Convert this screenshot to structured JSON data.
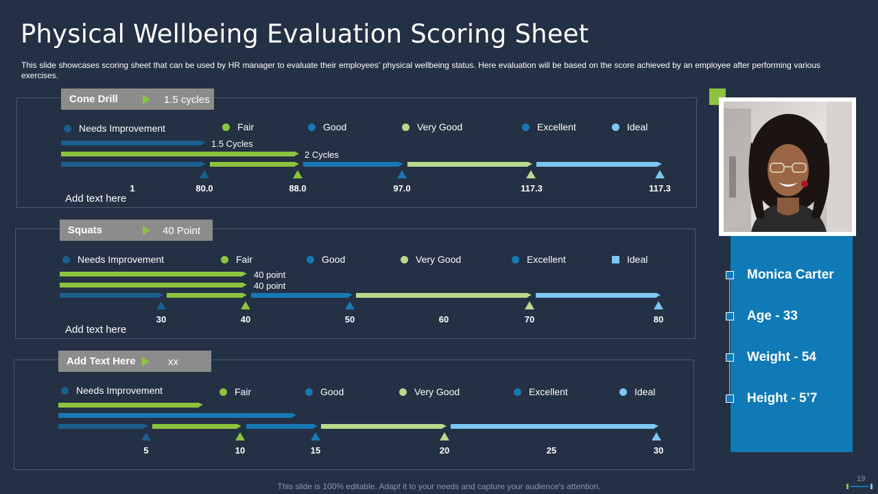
{
  "title": "Physical Wellbeing Evaluation Scoring Sheet",
  "subtitle": "This slide showcases scoring sheet that can be used by HR manager to evaluate their employees' physical wellbeing status. Here evaluation will be based on the score achieved by an employee after performing various exercises.",
  "legend": [
    "Needs Improvement",
    "Fair",
    "Good",
    "Very Good",
    "Excellent",
    "Ideal"
  ],
  "colors": {
    "dark_blue": "#1a5f8e",
    "green": "#8cc43f",
    "mid_blue": "#1779b3",
    "light_green": "#b9d98c",
    "light_blue": "#7cc8f2",
    "panel_bg": "#243044"
  },
  "sections": [
    {
      "name": "Cone Drill",
      "value": "1.5 cycles",
      "bar_labels": [
        "1.5 Cycles",
        "2 Cycles"
      ],
      "ticks": [
        "1",
        "80.0",
        "88.0",
        "97.0",
        "117.3",
        "117.3"
      ],
      "add_text": "Add text here"
    },
    {
      "name": "Squats",
      "value": "40 Point",
      "bar_labels": [
        "40 point",
        "40 point"
      ],
      "ticks": [
        "30",
        "40",
        "50",
        "60",
        "70",
        "80"
      ],
      "add_text": "Add text here"
    },
    {
      "name": "Add Text Here",
      "value": "xx",
      "bar_labels": [],
      "ticks": [
        "5",
        "10",
        "15",
        "20",
        "25",
        "30"
      ]
    }
  ],
  "profile": {
    "name": "Monica Carter",
    "age": "Age - 33",
    "weight": "Weight - 54",
    "height": "Height - 5’7"
  },
  "footer": "This slide is 100% editable. Adapt it to your needs and capture your audience's attention.",
  "page_number": "19"
}
